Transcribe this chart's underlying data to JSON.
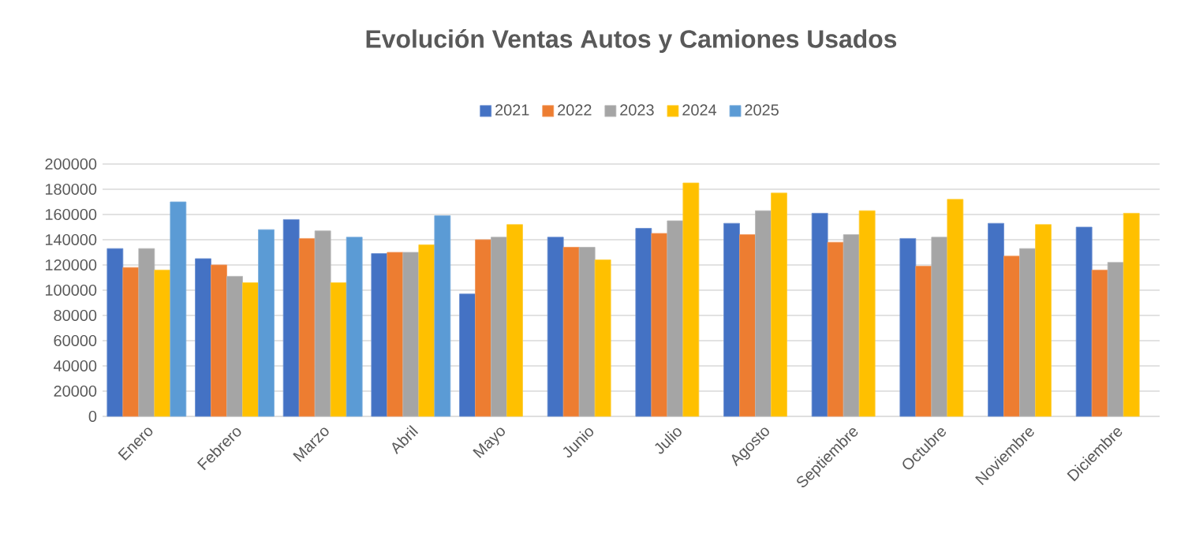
{
  "chart_data": {
    "type": "bar",
    "title": "Evolución Ventas Autos y Camiones Usados",
    "categories": [
      "Enero",
      "Febrero",
      "Marzo",
      "Abril",
      "Mayo",
      "Junio",
      "Julio",
      "Agosto",
      "Septiembre",
      "Octubre",
      "Noviembre",
      "Diciembre"
    ],
    "series": [
      {
        "name": "2021",
        "color": "#4472c4",
        "values": [
          133000,
          125000,
          156000,
          129000,
          97000,
          142000,
          149000,
          153000,
          161000,
          141000,
          153000,
          150000
        ]
      },
      {
        "name": "2022",
        "color": "#ed7d31",
        "values": [
          118000,
          120000,
          141000,
          130000,
          140000,
          134000,
          145000,
          144000,
          138000,
          119000,
          127000,
          116000
        ]
      },
      {
        "name": "2023",
        "color": "#a5a5a5",
        "values": [
          133000,
          111000,
          147000,
          130000,
          142000,
          134000,
          155000,
          163000,
          144000,
          142000,
          133000,
          122000
        ]
      },
      {
        "name": "2024",
        "color": "#ffc000",
        "values": [
          116000,
          106000,
          106000,
          136000,
          152000,
          124000,
          185000,
          177000,
          163000,
          172000,
          152000,
          161000
        ]
      },
      {
        "name": "2025",
        "color": "#5b9bd5",
        "values": [
          170000,
          148000,
          142000,
          159000,
          null,
          null,
          null,
          null,
          null,
          null,
          null,
          null
        ]
      }
    ],
    "ylim": [
      0,
      200000
    ],
    "yticks": [
      0,
      20000,
      40000,
      60000,
      80000,
      100000,
      120000,
      140000,
      160000,
      180000,
      200000
    ],
    "grid": "y",
    "legend": "top"
  }
}
